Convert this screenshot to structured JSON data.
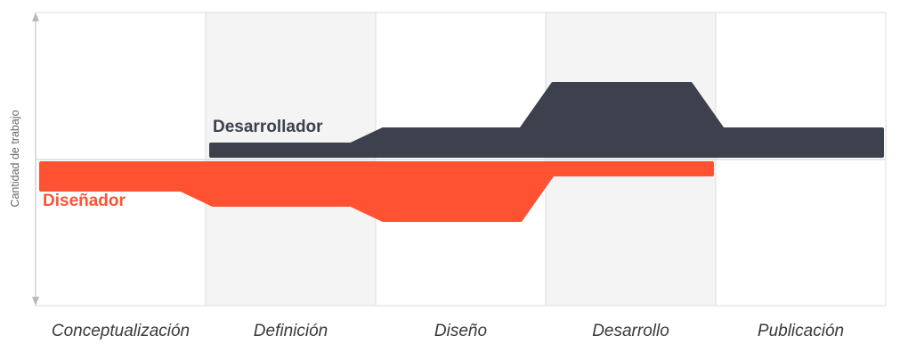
{
  "chart_data": {
    "type": "area",
    "ylabel": "Cantidad de trabajo",
    "categories": [
      "Conceptualización",
      "Definición",
      "Diseño",
      "Desarrollo",
      "Publicación"
    ],
    "shaded_phases": [
      "Definición",
      "Desarrollo"
    ],
    "grid": true,
    "y_scale": "relative workload (0 = none, 1 = max)",
    "series": [
      {
        "name": "Desarrollador",
        "side": "above",
        "color": "#3d414d",
        "label_phase": "Definición",
        "workload_by_phase": [
          0.0,
          0.1,
          0.2,
          0.5,
          0.2
        ]
      },
      {
        "name": "Diseñador",
        "side": "below",
        "color": "#ff5233",
        "label_phase": "Conceptualización",
        "workload_by_phase": [
          0.2,
          0.3,
          0.4,
          0.1,
          0.0
        ]
      }
    ]
  },
  "colors": {
    "grid": "#dcdcdc",
    "shade": "#f4f4f4",
    "axis": "#b9b9b9"
  }
}
